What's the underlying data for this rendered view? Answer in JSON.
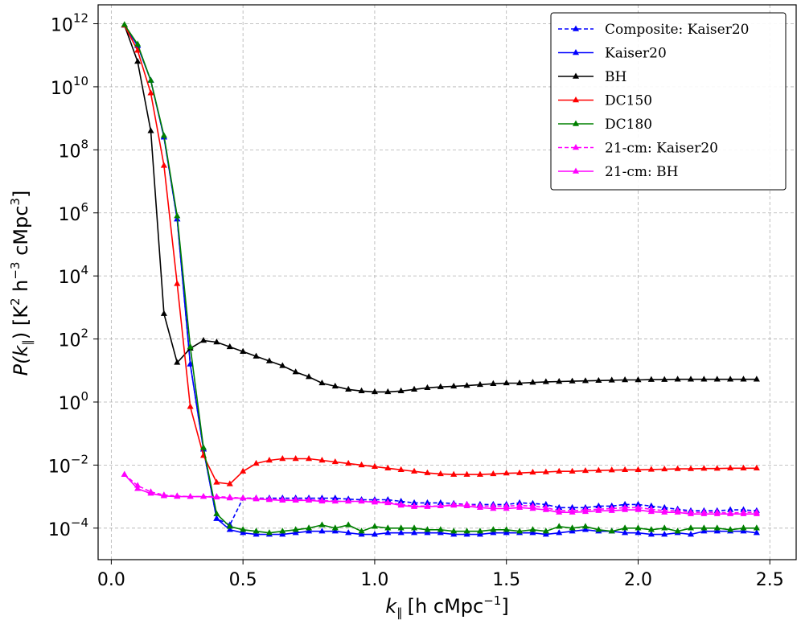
{
  "chart_data": {
    "type": "line",
    "title": "",
    "xlabel_main": "k",
    "xlabel_sub": "∥",
    "xlabel_unit": "[h cMpc",
    "xlabel_unit_sup": "−1",
    "xlabel_unit_close": "]",
    "ylabel_main": "P(k",
    "ylabel_sub": "∥",
    "ylabel_unit": ") [K",
    "ylabel_sup1": "2",
    "ylabel_mid": " h",
    "ylabel_sup2": "−3",
    "ylabel_mid2": " cMpc",
    "ylabel_sup3": "3",
    "ylabel_close": "]",
    "xlim": [
      -0.05,
      2.6
    ],
    "ylim_log10": [
      -5,
      12.6
    ],
    "yscale": "log",
    "grid": true,
    "legend_position": "top-right",
    "xticks": [
      {
        "value": 0.0,
        "label": "0.0"
      },
      {
        "value": 0.5,
        "label": "0.5"
      },
      {
        "value": 1.0,
        "label": "1.0"
      },
      {
        "value": 1.5,
        "label": "1.5"
      },
      {
        "value": 2.0,
        "label": "2.0"
      },
      {
        "value": 2.5,
        "label": "2.5"
      }
    ],
    "yticks": [
      {
        "exp": 12,
        "base": "10",
        "sup": "12"
      },
      {
        "exp": 10,
        "base": "10",
        "sup": "10"
      },
      {
        "exp": 8,
        "base": "10",
        "sup": "8"
      },
      {
        "exp": 6,
        "base": "10",
        "sup": "6"
      },
      {
        "exp": 4,
        "base": "10",
        "sup": "4"
      },
      {
        "exp": 2,
        "base": "10",
        "sup": "2"
      },
      {
        "exp": 0,
        "base": "10",
        "sup": "0"
      },
      {
        "exp": -2,
        "base": "10",
        "sup": "−2"
      },
      {
        "exp": -4,
        "base": "10",
        "sup": "−4"
      }
    ],
    "x": [
      0.05,
      0.1,
      0.15,
      0.2,
      0.25,
      0.3,
      0.35,
      0.4,
      0.45,
      0.5,
      0.55,
      0.6,
      0.65,
      0.7,
      0.75,
      0.8,
      0.85,
      0.9,
      0.95,
      1.0,
      1.05,
      1.1,
      1.15,
      1.2,
      1.25,
      1.3,
      1.35,
      1.4,
      1.45,
      1.5,
      1.55,
      1.6,
      1.65,
      1.7,
      1.75,
      1.8,
      1.85,
      1.9,
      1.95,
      2.0,
      2.05,
      2.1,
      2.15,
      2.2,
      2.25,
      2.3,
      2.35,
      2.4,
      2.45
    ],
    "series": [
      {
        "name": "Composite: Kaiser20",
        "color": "#0000ff",
        "dashed": true,
        "log10_y": [
          11.95,
          11.3,
          10.2,
          8.4,
          5.8,
          1.2,
          -1.5,
          -3.7,
          -3.9,
          -3.05,
          -3.05,
          -3.05,
          -3.05,
          -3.05,
          -3.05,
          -3.05,
          -3.05,
          -3.08,
          -3.1,
          -3.1,
          -3.1,
          -3.15,
          -3.2,
          -3.2,
          -3.2,
          -3.22,
          -3.25,
          -3.25,
          -3.25,
          -3.25,
          -3.2,
          -3.22,
          -3.25,
          -3.35,
          -3.35,
          -3.35,
          -3.3,
          -3.3,
          -3.25,
          -3.25,
          -3.3,
          -3.35,
          -3.4,
          -3.45,
          -3.45,
          -3.45,
          -3.42,
          -3.42,
          -3.45
        ]
      },
      {
        "name": "Kaiser20",
        "color": "#0000ff",
        "dashed": false,
        "log10_y": [
          11.95,
          11.3,
          10.2,
          8.4,
          5.8,
          1.2,
          -1.5,
          -3.7,
          -4.05,
          -4.15,
          -4.2,
          -4.2,
          -4.2,
          -4.15,
          -4.1,
          -4.1,
          -4.1,
          -4.15,
          -4.2,
          -4.2,
          -4.15,
          -4.15,
          -4.15,
          -4.15,
          -4.15,
          -4.2,
          -4.2,
          -4.2,
          -4.15,
          -4.15,
          -4.15,
          -4.15,
          -4.2,
          -4.15,
          -4.1,
          -4.05,
          -4.1,
          -4.1,
          -4.15,
          -4.15,
          -4.2,
          -4.2,
          -4.15,
          -4.2,
          -4.1,
          -4.1,
          -4.1,
          -4.1,
          -4.15
        ]
      },
      {
        "name": "BH",
        "color": "#000000",
        "dashed": false,
        "log10_y": [
          11.95,
          10.8,
          8.6,
          2.8,
          1.25,
          1.7,
          1.95,
          1.9,
          1.75,
          1.6,
          1.45,
          1.3,
          1.15,
          0.95,
          0.8,
          0.6,
          0.5,
          0.4,
          0.35,
          0.32,
          0.32,
          0.35,
          0.4,
          0.45,
          0.48,
          0.5,
          0.52,
          0.55,
          0.58,
          0.6,
          0.6,
          0.62,
          0.64,
          0.65,
          0.66,
          0.67,
          0.68,
          0.69,
          0.7,
          0.7,
          0.71,
          0.71,
          0.72,
          0.72,
          0.72,
          0.72,
          0.72,
          0.72,
          0.72
        ]
      },
      {
        "name": "DC150",
        "color": "#ff0000",
        "dashed": false,
        "log10_y": [
          11.95,
          11.15,
          9.8,
          7.5,
          3.75,
          -0.15,
          -1.7,
          -2.55,
          -2.6,
          -2.2,
          -1.95,
          -1.85,
          -1.8,
          -1.8,
          -1.8,
          -1.85,
          -1.9,
          -1.95,
          -2.0,
          -2.05,
          -2.1,
          -2.15,
          -2.2,
          -2.25,
          -2.28,
          -2.3,
          -2.3,
          -2.3,
          -2.28,
          -2.26,
          -2.25,
          -2.23,
          -2.22,
          -2.2,
          -2.2,
          -2.18,
          -2.17,
          -2.16,
          -2.15,
          -2.15,
          -2.14,
          -2.13,
          -2.12,
          -2.12,
          -2.11,
          -2.11,
          -2.1,
          -2.1,
          -2.1
        ]
      },
      {
        "name": "DC180",
        "color": "#008000",
        "dashed": false,
        "log10_y": [
          11.97,
          11.35,
          10.2,
          8.45,
          5.9,
          1.75,
          -1.45,
          -3.55,
          -3.95,
          -4.05,
          -4.1,
          -4.15,
          -4.1,
          -4.05,
          -4.0,
          -3.9,
          -4.0,
          -3.9,
          -4.1,
          -3.95,
          -4.0,
          -4.0,
          -4.0,
          -4.05,
          -4.05,
          -4.1,
          -4.1,
          -4.1,
          -4.05,
          -4.05,
          -4.1,
          -4.05,
          -4.1,
          -3.95,
          -4.0,
          -3.95,
          -4.05,
          -4.1,
          -4.0,
          -4.0,
          -4.05,
          -4.0,
          -4.1,
          -4.0,
          -4.0,
          -4.0,
          -4.05,
          -4.0,
          -4.0
        ]
      },
      {
        "name": "21-cm: Kaiser20",
        "color": "#ff00ff",
        "dashed": true,
        "log10_y": [
          -2.3,
          -2.65,
          -2.85,
          -2.95,
          -2.98,
          -3.0,
          -3.0,
          -3.0,
          -3.02,
          -3.05,
          -3.05,
          -3.08,
          -3.1,
          -3.1,
          -3.1,
          -3.12,
          -3.15,
          -3.15,
          -3.15,
          -3.15,
          -3.18,
          -3.25,
          -3.3,
          -3.3,
          -3.3,
          -3.25,
          -3.25,
          -3.3,
          -3.3,
          -3.3,
          -3.28,
          -3.3,
          -3.35,
          -3.45,
          -3.45,
          -3.42,
          -3.4,
          -3.38,
          -3.35,
          -3.35,
          -3.4,
          -3.45,
          -3.45,
          -3.5,
          -3.5,
          -3.5,
          -3.52,
          -3.5,
          -3.5
        ]
      },
      {
        "name": "21-cm: BH",
        "color": "#ff00ff",
        "dashed": false,
        "log10_y": [
          -2.3,
          -2.75,
          -2.9,
          -2.98,
          -3.0,
          -3.0,
          -3.0,
          -3.02,
          -3.05,
          -3.05,
          -3.08,
          -3.1,
          -3.12,
          -3.12,
          -3.12,
          -3.15,
          -3.15,
          -3.15,
          -3.15,
          -3.18,
          -3.2,
          -3.28,
          -3.32,
          -3.32,
          -3.3,
          -3.28,
          -3.3,
          -3.35,
          -3.38,
          -3.38,
          -3.35,
          -3.38,
          -3.42,
          -3.5,
          -3.5,
          -3.48,
          -3.45,
          -3.45,
          -3.42,
          -3.42,
          -3.48,
          -3.5,
          -3.5,
          -3.55,
          -3.55,
          -3.55,
          -3.55,
          -3.55,
          -3.55
        ]
      }
    ]
  }
}
